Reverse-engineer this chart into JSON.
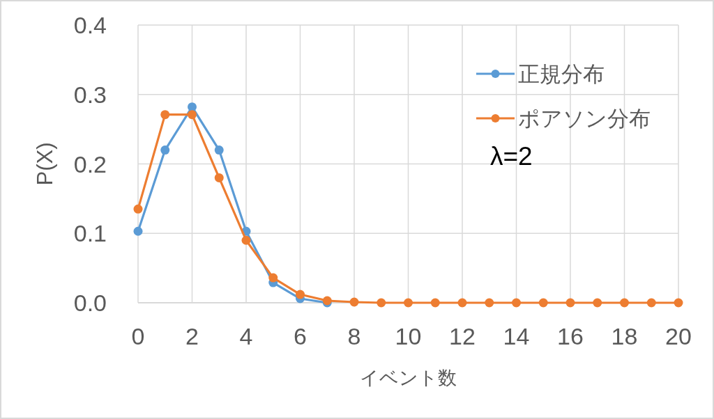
{
  "chart_data": {
    "type": "line",
    "x": [
      0,
      1,
      2,
      3,
      4,
      5,
      6,
      7,
      8,
      9,
      10,
      11,
      12,
      13,
      14,
      15,
      16,
      17,
      18,
      19,
      20
    ],
    "series": [
      {
        "name": "正規分布",
        "color": "#5b9bd5",
        "values": [
          0.103,
          0.22,
          0.282,
          0.22,
          0.103,
          0.029,
          0.006,
          0.0,
          null,
          null,
          null,
          null,
          null,
          null,
          null,
          null,
          null,
          null,
          null,
          null,
          null
        ]
      },
      {
        "name": "ポアソン分布",
        "color": "#ed7d31",
        "values": [
          0.135,
          0.271,
          0.271,
          0.18,
          0.09,
          0.036,
          0.012,
          0.003,
          0.001,
          0.0,
          0.0,
          0.0,
          0.0,
          0.0,
          0.0,
          0.0,
          0.0,
          0.0,
          0.0,
          0.0,
          0.0
        ]
      }
    ],
    "xlabel": "イベント数",
    "ylabel": "P(X)",
    "xlim": [
      0,
      20
    ],
    "xticks": [
      0,
      2,
      4,
      6,
      8,
      10,
      12,
      14,
      16,
      18,
      20
    ],
    "ylim": [
      0,
      0.4
    ],
    "yticks": [
      {
        "value": 0,
        "label": "0.0"
      },
      0.1,
      0.2,
      0.3,
      0.4
    ],
    "annotations": [
      "λ=2"
    ],
    "grid": true,
    "legend": "top right",
    "marker": "circle",
    "line_style": "solid"
  }
}
